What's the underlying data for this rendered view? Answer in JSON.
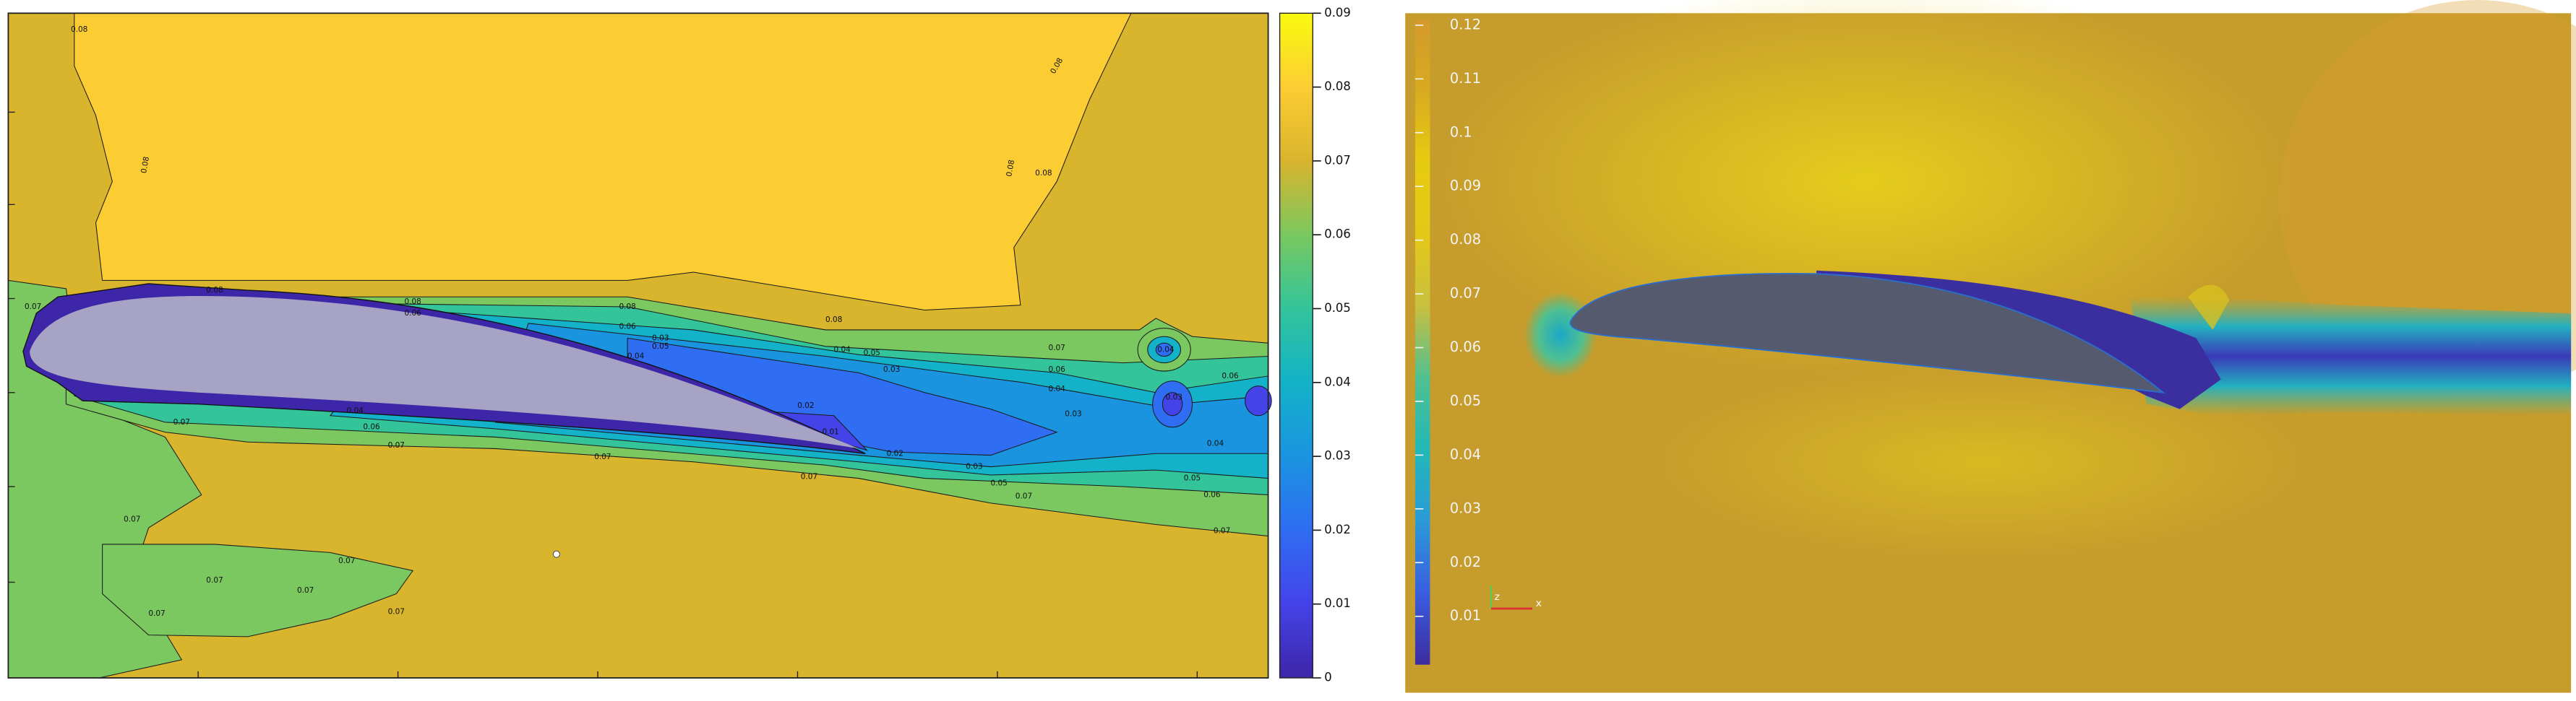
{
  "chart_data": [
    {
      "type": "contour",
      "colorbar": {
        "zlim": [
          0,
          0.09
        ],
        "ticks": [
          0,
          0.01,
          0.02,
          0.03,
          0.04,
          0.05,
          0.06,
          0.07,
          0.08,
          0.09
        ],
        "colormap": [
          "#3e26a8",
          "#4443e8",
          "#2f6df2",
          "#1b94e0",
          "#13b2c8",
          "#33c49a",
          "#7ac85f",
          "#d9b42d",
          "#fccd33",
          "#f9fb0e"
        ]
      },
      "contour_labels": [
        0.08,
        0.08,
        0.08,
        0.08,
        0.08,
        0.08,
        0.08,
        0.08,
        0.08,
        0.07,
        0.07,
        0.07,
        0.07,
        0.07,
        0.07,
        0.07,
        0.07,
        0.07,
        0.07,
        0.07,
        0.07,
        0.07,
        0.07,
        0.06,
        0.06,
        0.06,
        0.06,
        0.06,
        0.06,
        0.05,
        0.05,
        0.05,
        0.05,
        0.04,
        0.04,
        0.04,
        0.04,
        0.04,
        0.03,
        0.03,
        0.03,
        0.03,
        0.02,
        0.02,
        0.01,
        0.03,
        0.04
      ]
    },
    {
      "type": "contour",
      "colorbar": {
        "zlim": [
          0.001,
          0.121
        ],
        "ticks": [
          0.01,
          0.02,
          0.03,
          0.04,
          0.05,
          0.06,
          0.07,
          0.08,
          0.09,
          0.1,
          0.11,
          0.12
        ],
        "colormap": [
          "#3c2ca0",
          "#3a5ee0",
          "#2b9ad8",
          "#22b8b8",
          "#50c090",
          "#c8c040",
          "#e4c818",
          "#e6cc10",
          "#d8aa20",
          "#d49a2a"
        ]
      },
      "axis_labels": [
        "z",
        "x"
      ]
    }
  ]
}
